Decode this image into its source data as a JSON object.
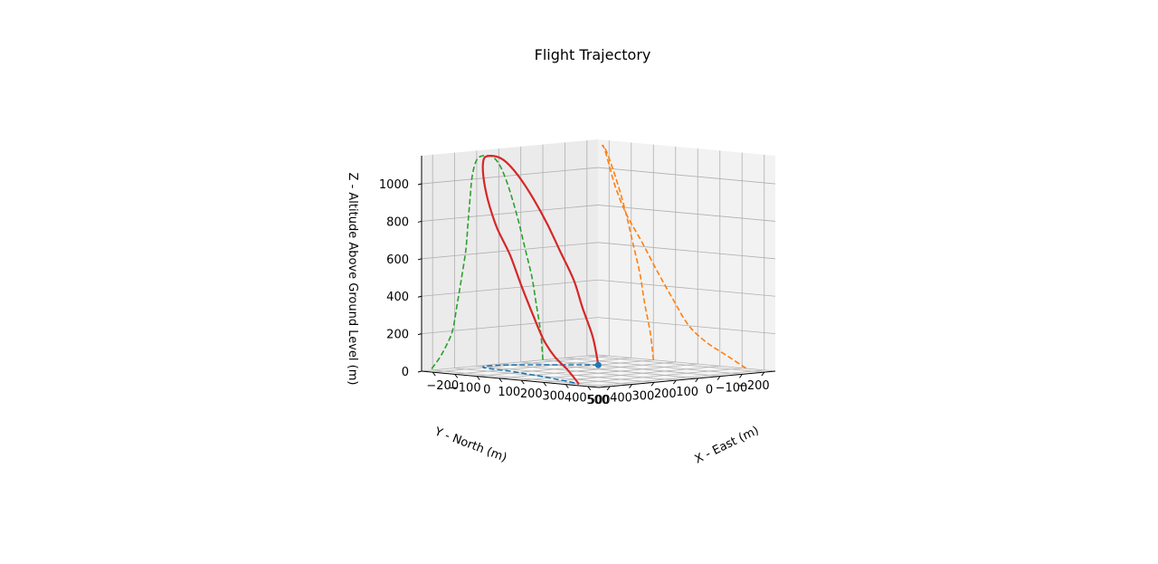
{
  "chart_data": {
    "type": "line3d",
    "title": "Flight Trajectory",
    "xlabel": "X - East (m)",
    "ylabel": "Y - North (m)",
    "zlabel": "Z - Altitude Above Ground Level (m)",
    "xlim": [
      -250,
      550
    ],
    "ylim": [
      -250,
      550
    ],
    "zlim": [
      0,
      1150
    ],
    "x_ticks": [
      -200,
      -100,
      0,
      100,
      200,
      300,
      400,
      500
    ],
    "y_ticks": [
      -200,
      -100,
      0,
      100,
      200,
      300,
      400,
      500
    ],
    "z_ticks": [
      0,
      200,
      400,
      600,
      800,
      1000
    ],
    "x_tick_labels": [
      "−200",
      "−100",
      "0",
      "100",
      "200",
      "300",
      "400",
      "500"
    ],
    "y_tick_labels": [
      "−200",
      "−100",
      "0",
      "100",
      "200",
      "300",
      "400",
      "500"
    ],
    "z_tick_labels": [
      "0",
      "200",
      "400",
      "600",
      "800",
      "1000"
    ],
    "grid": true,
    "series": [
      {
        "role": "trajectory",
        "color": "#d62728",
        "style": "solid",
        "x": [
          0,
          -15,
          -40,
          -60,
          -90,
          -120,
          -150,
          -180,
          -205,
          -220,
          -230,
          -220,
          -200,
          -170,
          -120,
          -50,
          20,
          90,
          160,
          240,
          330,
          420
        ],
        "y": [
          0,
          10,
          30,
          50,
          80,
          110,
          140,
          170,
          200,
          230,
          270,
          300,
          320,
          330,
          340,
          350,
          370,
          390,
          410,
          440,
          470,
          510
        ],
        "z": [
          0,
          150,
          300,
          450,
          600,
          750,
          880,
          990,
          1070,
          1110,
          1120,
          1100,
          1020,
          900,
          760,
          620,
          470,
          330,
          200,
          120,
          60,
          0
        ]
      },
      {
        "role": "ground-track",
        "color": "#1f77b4",
        "style": "dashed",
        "x": [
          0,
          -15,
          -40,
          -60,
          -90,
          -120,
          -150,
          -180,
          -205,
          -220,
          -230,
          -220,
          -200,
          -170,
          -120,
          -50,
          20,
          90,
          160,
          240,
          330,
          420
        ],
        "y": [
          0,
          10,
          30,
          50,
          80,
          110,
          140,
          170,
          200,
          230,
          270,
          300,
          320,
          330,
          340,
          350,
          370,
          390,
          410,
          440,
          470,
          510
        ],
        "z": [
          0,
          0,
          0,
          0,
          0,
          0,
          0,
          0,
          0,
          0,
          0,
          0,
          0,
          0,
          0,
          0,
          0,
          0,
          0,
          0,
          0,
          0
        ]
      },
      {
        "role": "projection-xz",
        "color": "#ff7f0e",
        "style": "dashed",
        "x": [
          0,
          -15,
          -40,
          -60,
          -90,
          -120,
          -150,
          -180,
          -205,
          -220,
          -230,
          -220,
          -200,
          -170,
          -120,
          -50,
          20,
          90,
          160,
          240,
          330,
          420
        ],
        "y": [
          -250,
          -250,
          -250,
          -250,
          -250,
          -250,
          -250,
          -250,
          -250,
          -250,
          -250,
          -250,
          -250,
          -250,
          -250,
          -250,
          -250,
          -250,
          -250,
          -250,
          -250,
          -250
        ],
        "z": [
          0,
          150,
          300,
          450,
          600,
          750,
          880,
          990,
          1070,
          1110,
          1120,
          1100,
          1020,
          900,
          760,
          620,
          470,
          330,
          200,
          120,
          60,
          0
        ]
      },
      {
        "role": "projection-yz",
        "color": "#2ca02c",
        "style": "dashed",
        "x": [
          -250,
          -250,
          -250,
          -250,
          -250,
          -250,
          -250,
          -250,
          -250,
          -250,
          -250,
          -250,
          -250,
          -250,
          -250,
          -250,
          -250,
          -250,
          -250,
          -250,
          -250,
          -250
        ],
        "y": [
          0,
          10,
          30,
          50,
          80,
          110,
          140,
          170,
          200,
          230,
          270,
          300,
          320,
          330,
          340,
          350,
          370,
          390,
          410,
          440,
          470,
          510
        ],
        "z": [
          0,
          150,
          300,
          450,
          600,
          750,
          880,
          990,
          1070,
          1110,
          1120,
          1100,
          1020,
          900,
          760,
          620,
          470,
          330,
          200,
          120,
          60,
          0
        ]
      }
    ],
    "markers": [
      {
        "role": "start-point",
        "color": "#1f77b4",
        "x": 0,
        "y": 0,
        "z": 0
      }
    ]
  }
}
